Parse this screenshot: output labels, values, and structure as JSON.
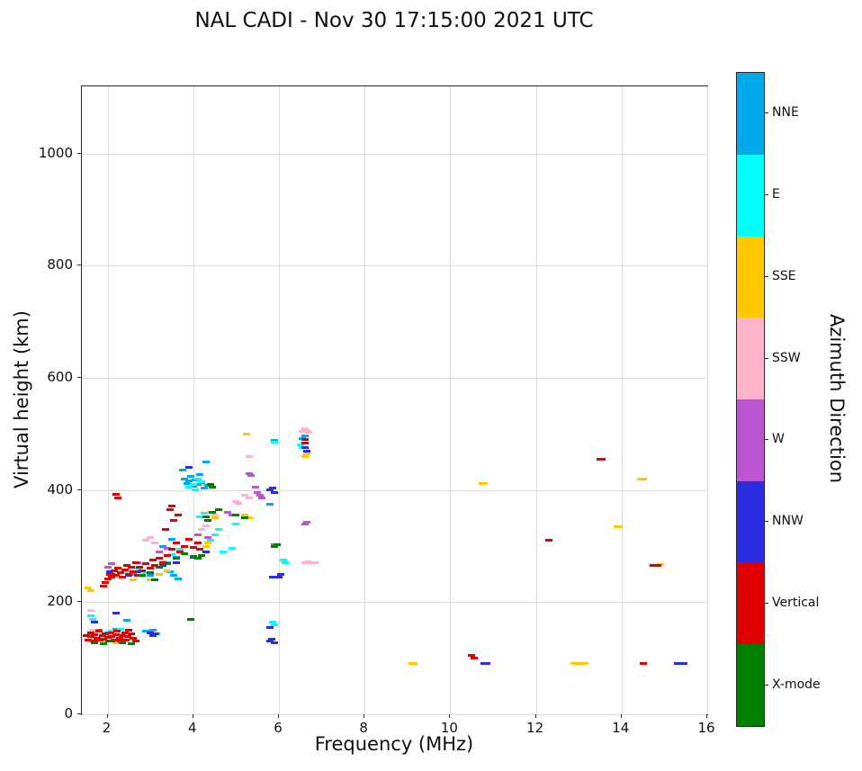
{
  "chart_data": {
    "type": "scatter",
    "marker": "horizontal-dash",
    "title": "NAL CADI - Nov 30 17:15:00 2021 UTC",
    "xlabel": "Frequency (MHz)",
    "ylabel": "Virtual height (km)",
    "xlim": [
      1.4,
      16
    ],
    "ylim": [
      0,
      1120
    ],
    "xticks": [
      2,
      4,
      6,
      8,
      10,
      12,
      14,
      16
    ],
    "yticks": [
      0,
      200,
      400,
      600,
      800,
      1000
    ],
    "grid": true,
    "legend_position": "right-colorbar",
    "colorbar": {
      "label": "Azimuth Direction"
    },
    "series": [
      {
        "name": "NNE",
        "color": "#00a8ec",
        "points": [
          [
            3.75,
            435
          ],
          [
            3.8,
            420
          ],
          [
            3.85,
            412
          ],
          [
            3.9,
            416
          ],
          [
            3.95,
            425
          ],
          [
            4.0,
            406
          ],
          [
            4.05,
            418
          ],
          [
            4.1,
            410
          ],
          [
            4.15,
            428
          ],
          [
            4.2,
            413
          ],
          [
            4.25,
            403
          ],
          [
            4.3,
            450
          ],
          [
            4.35,
            408
          ],
          [
            2.6,
            250
          ],
          [
            2.8,
            256
          ],
          [
            3.0,
            248
          ],
          [
            3.2,
            262
          ],
          [
            3.4,
            270
          ],
          [
            3.6,
            280
          ],
          [
            3.3,
            300
          ],
          [
            3.5,
            312
          ],
          [
            1.8,
            150
          ],
          [
            2.0,
            146
          ],
          [
            2.2,
            152
          ],
          [
            2.9,
            148
          ],
          [
            3.05,
            150
          ],
          [
            3.15,
            144
          ],
          [
            5.9,
            488
          ],
          [
            6.55,
            492
          ],
          [
            6.6,
            496
          ],
          [
            5.8,
            375
          ],
          [
            3.45,
            255
          ],
          [
            3.55,
            248
          ],
          [
            3.65,
            242
          ],
          [
            2.45,
            168
          ]
        ]
      },
      {
        "name": "E",
        "color": "#00ffff",
        "points": [
          [
            3.9,
            405
          ],
          [
            4.0,
            410
          ],
          [
            4.05,
            400
          ],
          [
            4.1,
            420
          ],
          [
            4.2,
            415
          ],
          [
            2.5,
            255
          ],
          [
            2.7,
            260
          ],
          [
            2.9,
            252
          ],
          [
            3.1,
            265
          ],
          [
            3.3,
            272
          ],
          [
            3.5,
            285
          ],
          [
            3.7,
            295
          ],
          [
            4.3,
            300
          ],
          [
            4.4,
            310
          ],
          [
            4.5,
            320
          ],
          [
            4.6,
            330
          ],
          [
            5.0,
            340
          ],
          [
            5.9,
            485
          ],
          [
            6.5,
            480
          ],
          [
            6.55,
            476
          ],
          [
            1.6,
            175
          ],
          [
            1.65,
            170
          ],
          [
            5.85,
            165
          ],
          [
            5.9,
            160
          ],
          [
            2.1,
            148
          ],
          [
            2.3,
            152
          ],
          [
            4.7,
            290
          ],
          [
            4.9,
            296
          ],
          [
            6.1,
            275
          ],
          [
            6.15,
            270
          ],
          [
            4.15,
            352
          ],
          [
            4.25,
            358
          ]
        ]
      },
      {
        "name": "SSE",
        "color": "#ffc800",
        "points": [
          [
            1.55,
            225
          ],
          [
            1.6,
            220
          ],
          [
            1.7,
            128
          ],
          [
            1.75,
            132
          ],
          [
            2.2,
            128
          ],
          [
            2.4,
            132
          ],
          [
            2.6,
            240
          ],
          [
            2.8,
            246
          ],
          [
            3.0,
            240
          ],
          [
            3.2,
            250
          ],
          [
            3.4,
            256
          ],
          [
            4.3,
            300
          ],
          [
            4.35,
            305
          ],
          [
            4.5,
            350
          ],
          [
            5.2,
            356
          ],
          [
            5.3,
            350
          ],
          [
            5.25,
            500
          ],
          [
            6.6,
            460
          ],
          [
            6.65,
            464
          ],
          [
            9.1,
            90
          ],
          [
            9.15,
            90
          ],
          [
            10.75,
            411
          ],
          [
            10.8,
            411
          ],
          [
            12.9,
            90
          ],
          [
            13.0,
            90
          ],
          [
            13.1,
            90
          ],
          [
            13.15,
            90
          ],
          [
            13.9,
            335
          ],
          [
            13.95,
            334
          ],
          [
            14.45,
            420
          ],
          [
            14.5,
            420
          ],
          [
            14.85,
            266
          ],
          [
            14.9,
            267
          ]
        ]
      },
      {
        "name": "SSW",
        "color": "#ffb3c6",
        "points": [
          [
            6.55,
            505
          ],
          [
            6.6,
            510
          ],
          [
            6.65,
            506
          ],
          [
            6.7,
            503
          ],
          [
            6.6,
            271
          ],
          [
            6.7,
            272
          ],
          [
            6.78,
            270
          ],
          [
            6.85,
            271
          ],
          [
            5.2,
            390
          ],
          [
            5.3,
            386
          ],
          [
            4.4,
            360
          ],
          [
            4.5,
            356
          ],
          [
            1.6,
            185
          ],
          [
            1.65,
            150
          ],
          [
            2.9,
            310
          ],
          [
            3.0,
            316
          ],
          [
            3.1,
            306
          ],
          [
            4.2,
            330
          ],
          [
            4.3,
            336
          ],
          [
            5.0,
            380
          ],
          [
            5.05,
            376
          ],
          [
            2.4,
            256
          ],
          [
            2.5,
            250
          ],
          [
            5.3,
            460
          ]
        ]
      },
      {
        "name": "W",
        "color": "#bb55d0",
        "points": [
          [
            5.5,
            395
          ],
          [
            5.55,
            390
          ],
          [
            5.6,
            386
          ],
          [
            6.6,
            340
          ],
          [
            6.65,
            342
          ],
          [
            5.3,
            430
          ],
          [
            5.35,
            426
          ],
          [
            4.8,
            360
          ],
          [
            4.9,
            356
          ],
          [
            3.2,
            290
          ],
          [
            3.4,
            296
          ],
          [
            2.7,
            270
          ],
          [
            4.1,
            320
          ],
          [
            5.9,
            302
          ],
          [
            2.0,
            262
          ],
          [
            2.1,
            268
          ],
          [
            5.45,
            405
          ],
          [
            4.35,
            315
          ]
        ]
      },
      {
        "name": "NNW",
        "color": "#2d2de0",
        "points": [
          [
            5.8,
            400
          ],
          [
            5.85,
            404
          ],
          [
            5.9,
            396
          ],
          [
            5.78,
            130
          ],
          [
            5.84,
            134
          ],
          [
            5.9,
            128
          ],
          [
            5.8,
            155
          ],
          [
            3.0,
            145
          ],
          [
            3.05,
            140
          ],
          [
            3.1,
            143
          ],
          [
            2.05,
            255
          ],
          [
            2.1,
            250
          ],
          [
            2.5,
            248
          ],
          [
            2.7,
            255
          ],
          [
            3.3,
            265
          ],
          [
            3.6,
            270
          ],
          [
            4.0,
            280
          ],
          [
            4.3,
            290
          ],
          [
            6.6,
            475
          ],
          [
            6.65,
            470
          ],
          [
            10.8,
            90
          ],
          [
            10.85,
            91
          ],
          [
            15.3,
            90
          ],
          [
            15.35,
            90
          ],
          [
            15.4,
            90
          ],
          [
            15.45,
            90
          ],
          [
            6.0,
            245
          ],
          [
            6.05,
            250
          ],
          [
            2.2,
            180
          ],
          [
            1.7,
            165
          ],
          [
            5.85,
            245
          ],
          [
            3.9,
            440
          ]
        ]
      },
      {
        "name": "Vertical",
        "color": "#e00000",
        "points": [
          [
            1.5,
            140
          ],
          [
            1.55,
            133
          ],
          [
            1.6,
            145
          ],
          [
            1.62,
            138
          ],
          [
            1.68,
            130
          ],
          [
            1.7,
            142
          ],
          [
            1.75,
            136
          ],
          [
            1.8,
            148
          ],
          [
            1.82,
            132
          ],
          [
            1.88,
            140
          ],
          [
            1.9,
            134
          ],
          [
            1.95,
            143
          ],
          [
            2.0,
            137
          ],
          [
            2.02,
            130
          ],
          [
            2.08,
            145
          ],
          [
            2.1,
            139
          ],
          [
            2.15,
            133
          ],
          [
            2.2,
            142
          ],
          [
            2.22,
            148
          ],
          [
            2.28,
            136
          ],
          [
            2.3,
            130
          ],
          [
            2.35,
            140
          ],
          [
            2.4,
            145
          ],
          [
            2.42,
            133
          ],
          [
            2.48,
            138
          ],
          [
            2.5,
            150
          ],
          [
            2.55,
            143
          ],
          [
            2.6,
            136
          ],
          [
            2.65,
            130
          ],
          [
            1.9,
            228
          ],
          [
            1.95,
            235
          ],
          [
            2.0,
            242
          ],
          [
            2.05,
            250
          ],
          [
            2.1,
            245
          ],
          [
            2.15,
            256
          ],
          [
            2.2,
            248
          ],
          [
            2.25,
            260
          ],
          [
            2.3,
            252
          ],
          [
            2.35,
            244
          ],
          [
            2.4,
            258
          ],
          [
            2.45,
            265
          ],
          [
            2.5,
            250
          ],
          [
            2.55,
            262
          ],
          [
            2.6,
            255
          ],
          [
            2.65,
            270
          ],
          [
            2.7,
            248
          ],
          [
            2.75,
            263
          ],
          [
            2.8,
            256
          ],
          [
            2.9,
            268
          ],
          [
            3.0,
            260
          ],
          [
            3.05,
            275
          ],
          [
            3.1,
            265
          ],
          [
            3.2,
            278
          ],
          [
            3.3,
            270
          ],
          [
            3.35,
            330
          ],
          [
            3.4,
            283
          ],
          [
            3.5,
            295
          ],
          [
            3.55,
            345
          ],
          [
            3.6,
            305
          ],
          [
            3.65,
            355
          ],
          [
            3.7,
            290
          ],
          [
            3.8,
            300
          ],
          [
            3.9,
            312
          ],
          [
            4.0,
            298
          ],
          [
            4.1,
            305
          ],
          [
            4.15,
            295
          ],
          [
            2.2,
            392
          ],
          [
            2.25,
            386
          ],
          [
            3.45,
            365
          ],
          [
            3.5,
            372
          ],
          [
            6.6,
            490
          ],
          [
            6.62,
            484
          ],
          [
            10.5,
            105
          ],
          [
            10.55,
            101
          ],
          [
            12.3,
            310
          ],
          [
            13.5,
            455
          ],
          [
            13.55,
            455
          ],
          [
            14.5,
            90
          ],
          [
            14.75,
            265
          ],
          [
            14.8,
            266
          ],
          [
            14.85,
            265
          ]
        ]
      },
      {
        "name": "X-mode",
        "color": "#008000",
        "points": [
          [
            1.7,
            128
          ],
          [
            1.9,
            126
          ],
          [
            2.1,
            130
          ],
          [
            2.35,
            128
          ],
          [
            2.55,
            126
          ],
          [
            3.95,
            170
          ],
          [
            3.0,
            252
          ],
          [
            3.2,
            262
          ],
          [
            3.4,
            268
          ],
          [
            3.6,
            278
          ],
          [
            3.8,
            286
          ],
          [
            4.0,
            282
          ],
          [
            4.1,
            278
          ],
          [
            4.2,
            284
          ],
          [
            4.3,
            352
          ],
          [
            4.35,
            346
          ],
          [
            4.45,
            360
          ],
          [
            4.6,
            365
          ],
          [
            4.4,
            410
          ],
          [
            4.45,
            405
          ],
          [
            5.0,
            356
          ],
          [
            5.2,
            350
          ],
          [
            5.9,
            300
          ],
          [
            5.95,
            303
          ],
          [
            3.1,
            240
          ],
          [
            2.8,
            248
          ]
        ]
      }
    ]
  }
}
